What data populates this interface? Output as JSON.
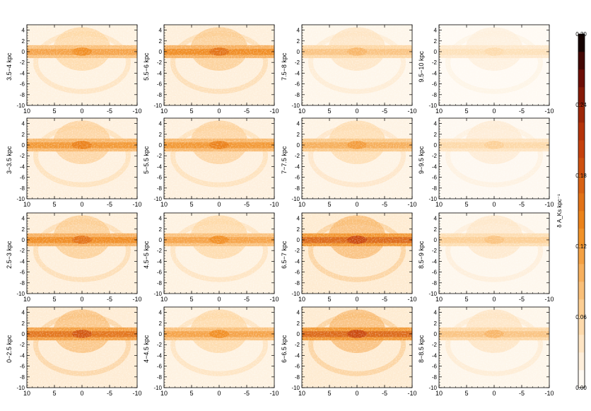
{
  "chart_data": {
    "type": "heatmap",
    "panel_count": 16,
    "x_range": [
      10,
      -10
    ],
    "y_range": [
      -10,
      5
    ],
    "x_ticks": [
      "10",
      "5",
      "0",
      "-5",
      "-10"
    ],
    "y_ticks": [
      "4",
      "2",
      "0",
      "-2",
      "-4",
      "-6",
      "-8",
      "-10"
    ],
    "panels": [
      {
        "label": "3.5−4 kpc",
        "density": 0.1
      },
      {
        "label": "5.5−6 kpc",
        "density": 0.12
      },
      {
        "label": "7.5−8 kpc",
        "density": 0.07
      },
      {
        "label": "9.5−10 kpc",
        "density": 0.04
      },
      {
        "label": "3−3.5 kpc",
        "density": 0.11
      },
      {
        "label": "5−5.5 kpc",
        "density": 0.11
      },
      {
        "label": "7−7.5 kpc",
        "density": 0.09
      },
      {
        "label": "9−9.5 kpc",
        "density": 0.05
      },
      {
        "label": "2.5−3 kpc",
        "density": 0.12
      },
      {
        "label": "4.5−5 kpc",
        "density": 0.1
      },
      {
        "label": "6.5−7 kpc",
        "density": 0.15
      },
      {
        "label": "8.5−9 kpc",
        "density": 0.06
      },
      {
        "label": "0−2.5 kpc",
        "density": 0.14
      },
      {
        "label": "4−4.5 kpc",
        "density": 0.1
      },
      {
        "label": "6−6.5 kpc",
        "density": 0.15
      },
      {
        "label": "8−8.5 kpc",
        "density": 0.07
      }
    ],
    "colorbar": {
      "label": "δ A_Ks kpc⁻¹",
      "min": 0.0,
      "max": 0.3,
      "ticks": [
        "0.30",
        "0.24",
        "0.18",
        "0.12",
        "0.06",
        "0.00"
      ],
      "steps": 20
    },
    "colors": {
      "low": "#ffffff",
      "mid1": "#fdd5a0",
      "mid2": "#f08a1c",
      "mid3": "#c0390b",
      "mid4": "#6b0d07",
      "high": "#000000"
    }
  }
}
